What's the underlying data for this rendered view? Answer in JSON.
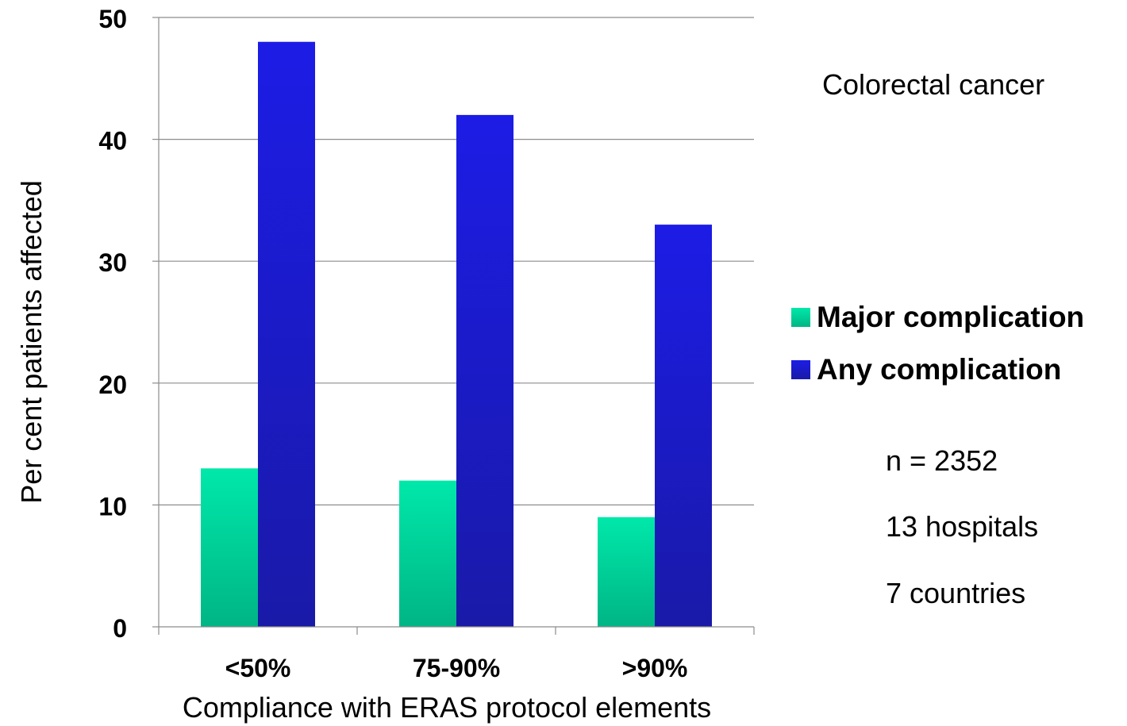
{
  "chart_data": {
    "type": "bar",
    "categories": [
      "<50%",
      "75-90%",
      ">90%"
    ],
    "series": [
      {
        "name": "Major complication",
        "values": [
          13,
          12,
          9
        ],
        "color": "#00dfa3"
      },
      {
        "name": "Any complication",
        "values": [
          48,
          42,
          33
        ],
        "color": "#1a1adf"
      }
    ],
    "xlabel": "Compliance with ERAS protocol elements",
    "ylabel": "Per cent patients affected",
    "ylim": [
      0,
      50
    ],
    "yticks": [
      0,
      10,
      20,
      30,
      40,
      50
    ],
    "grid": true,
    "legend_position": "right"
  },
  "annotations": {
    "title": "Colorectal cancer",
    "n": "n = 2352",
    "hospitals": "13 hospitals",
    "countries": "7 countries"
  }
}
